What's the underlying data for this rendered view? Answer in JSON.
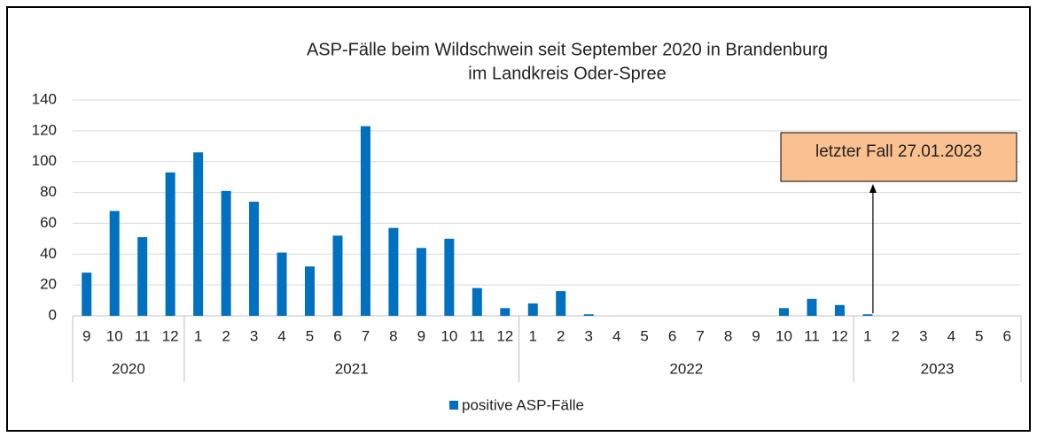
{
  "chart_data": {
    "type": "bar",
    "title": [
      "ASP-Fälle beim Wildschwein seit September 2020 in Brandenburg",
      "im Landkreis Oder-Spree"
    ],
    "categories": [
      "9",
      "10",
      "11",
      "12",
      "1",
      "2",
      "3",
      "4",
      "5",
      "6",
      "7",
      "8",
      "9",
      "10",
      "11",
      "12",
      "1",
      "2",
      "3",
      "4",
      "5",
      "6",
      "7",
      "8",
      "9",
      "10",
      "11",
      "12",
      "1",
      "2",
      "3",
      "4",
      "5",
      "6"
    ],
    "groups": [
      "2020",
      "2021",
      "2022",
      "2023"
    ],
    "series": [
      {
        "name": "positive ASP-Fälle",
        "color": "#0070c0",
        "values": [
          28,
          68,
          51,
          93,
          106,
          81,
          74,
          41,
          32,
          52,
          123,
          57,
          44,
          50,
          18,
          5,
          8,
          16,
          1,
          0,
          0,
          0,
          0,
          0,
          0,
          5,
          11,
          7,
          1,
          0,
          0,
          0,
          0,
          0
        ]
      }
    ],
    "ylim": [
      0,
      140
    ],
    "yticks": [
      0,
      20,
      40,
      60,
      80,
      100,
      120,
      140
    ],
    "grid": true,
    "annotation": "letzter Fall 27.01.2023"
  }
}
